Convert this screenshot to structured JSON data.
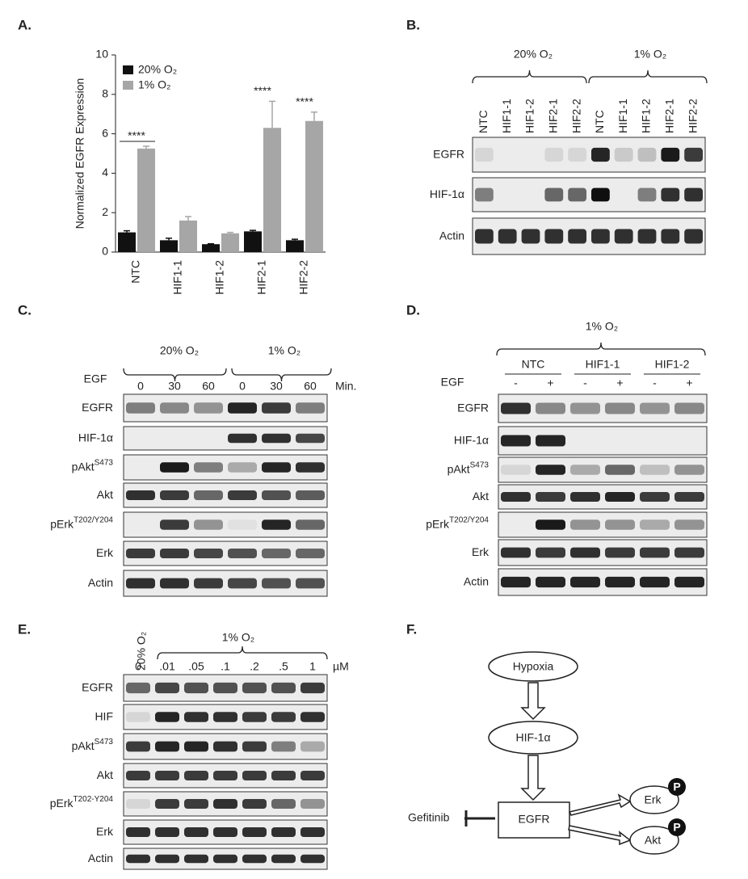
{
  "chart_data": {
    "type": "bar",
    "panel_label": "A.",
    "ylabel": "Normalized EGFR Expression",
    "categories": [
      "NTC",
      "HIF1-1",
      "HIF1-2",
      "HIF2-1",
      "HIF2-2"
    ],
    "series": [
      {
        "name": "20% O₂",
        "color": "#111111",
        "values": [
          1.0,
          0.6,
          0.4,
          1.05,
          0.6
        ],
        "errors": [
          0.08,
          0.1,
          0.02,
          0.05,
          0.05
        ]
      },
      {
        "name": "1% O₂",
        "color": "#a6a6a6",
        "values": [
          5.25,
          1.6,
          0.95,
          6.3,
          6.65
        ],
        "errors": [
          0.12,
          0.2,
          0.05,
          1.35,
          0.45
        ]
      }
    ],
    "ylim": [
      0,
      10
    ],
    "yticks": [
      0,
      2,
      4,
      6,
      8,
      10
    ],
    "annotations": [
      {
        "text": "****",
        "category": "NTC"
      },
      {
        "text": "****",
        "category": "HIF2-1"
      },
      {
        "text": "****",
        "category": "HIF2-2"
      }
    ]
  },
  "panels": {
    "B": {
      "label": "B.",
      "conditions": [
        "20% O₂",
        "1% O₂"
      ],
      "lanes": [
        "NTC",
        "HIF1-1",
        "HIF1-2",
        "HIF2-1",
        "HIF2-2",
        "NTC",
        "HIF1-1",
        "HIF1-2",
        "HIF2-1",
        "HIF2-2"
      ],
      "rows": [
        {
          "name": "EGFR"
        },
        {
          "name": "HIF-1α"
        },
        {
          "name": "Actin"
        }
      ]
    },
    "C": {
      "label": "C.",
      "conditions": [
        "20% O₂",
        "1% O₂"
      ],
      "treatment": "EGF",
      "times": [
        "0",
        "30",
        "60",
        "0",
        "30",
        "60"
      ],
      "unit": "Min.",
      "rows": [
        {
          "name": "EGFR"
        },
        {
          "name": "HIF-1α"
        },
        {
          "name": "pAkt",
          "sup": "S473"
        },
        {
          "name": "Akt"
        },
        {
          "name": "pErk",
          "sup": "T202/Y204"
        },
        {
          "name": "Erk"
        },
        {
          "name": "Actin"
        }
      ]
    },
    "D": {
      "label": "D.",
      "condition": "1% O₂",
      "groups": [
        "NTC",
        "HIF1-1",
        "HIF1-2"
      ],
      "treatment": "EGF",
      "treatments": [
        "-",
        "+",
        "-",
        "+",
        "-",
        "+"
      ],
      "rows": [
        {
          "name": "EGFR"
        },
        {
          "name": "HIF-1α"
        },
        {
          "name": "pAkt",
          "sup": "S473"
        },
        {
          "name": "Akt"
        },
        {
          "name": "pErk",
          "sup": "T202/Y204"
        },
        {
          "name": "Erk"
        },
        {
          "name": "Actin"
        }
      ]
    },
    "E": {
      "label": "E.",
      "control": "20% O₂",
      "condition": "1% O₂",
      "doses": [
        "0",
        ".01",
        ".05",
        ".1",
        ".2",
        ".5",
        "1"
      ],
      "unit": "µM",
      "rows": [
        {
          "name": "EGFR"
        },
        {
          "name": "HIF"
        },
        {
          "name": "pAkt",
          "sup": "S473"
        },
        {
          "name": "Akt"
        },
        {
          "name": "pErk",
          "sup": "T202-Y204"
        },
        {
          "name": "Erk"
        },
        {
          "name": "Actin"
        }
      ]
    },
    "F": {
      "label": "F.",
      "hypoxia": "Hypoxia",
      "hif": "HIF-1α",
      "egfr": "EGFR",
      "erk": "Erk",
      "akt": "Akt",
      "inhibitor": "Gefitinib",
      "phospho": "P"
    }
  }
}
